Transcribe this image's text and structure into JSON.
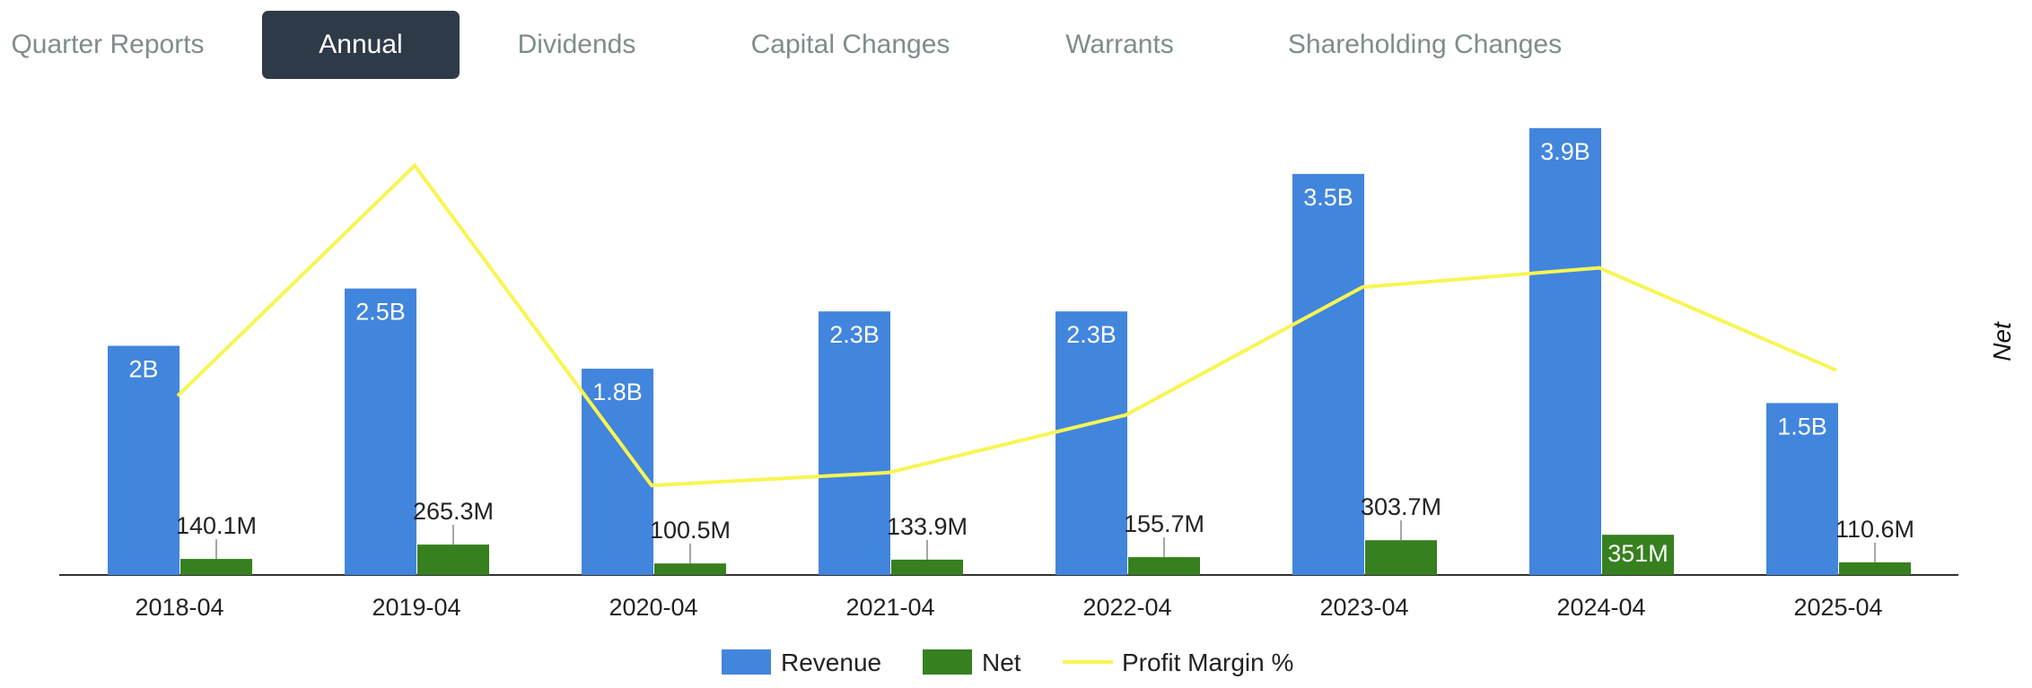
{
  "tabs": [
    {
      "label": "Quarter Reports",
      "active": false
    },
    {
      "label": "Annual",
      "active": true
    },
    {
      "label": "Dividends",
      "active": false
    },
    {
      "label": "Capital Changes",
      "active": false
    },
    {
      "label": "Warrants",
      "active": false
    },
    {
      "label": "Shareholding Changes",
      "active": false
    }
  ],
  "chart_data": {
    "type": "bar",
    "categories": [
      "2018-04",
      "2019-04",
      "2020-04",
      "2021-04",
      "2022-04",
      "2023-04",
      "2024-04",
      "2025-04"
    ],
    "series": [
      {
        "name": "Revenue",
        "type": "bar",
        "color": "#4285dd",
        "values": [
          2.0,
          2.5,
          1.8,
          2.3,
          2.3,
          3.5,
          3.9,
          1.5
        ],
        "labels": [
          "2B",
          "2.5B",
          "1.8B",
          "2.3B",
          "2.3B",
          "3.5B",
          "3.9B",
          "1.5B"
        ]
      },
      {
        "name": "Net",
        "type": "bar",
        "color": "#36801f",
        "values": [
          0.1401,
          0.2653,
          0.1005,
          0.1339,
          0.1557,
          0.3037,
          0.351,
          0.1106
        ],
        "labels": [
          "140.1M",
          "265.3M",
          "100.5M",
          "133.9M",
          "155.7M",
          "303.7M",
          "351M",
          "110.6M"
        ]
      },
      {
        "name": "Profit Margin %",
        "type": "line",
        "color": "#f8f554",
        "values": [
          7.0,
          10.6,
          5.6,
          5.8,
          6.7,
          8.7,
          9.0,
          7.4
        ]
      }
    ],
    "right_axis_title": "Net",
    "ylim": [
      0,
      4
    ],
    "margin_ylim": [
      5,
      11
    ],
    "legend_position": "bottom-center",
    "grid": false
  }
}
